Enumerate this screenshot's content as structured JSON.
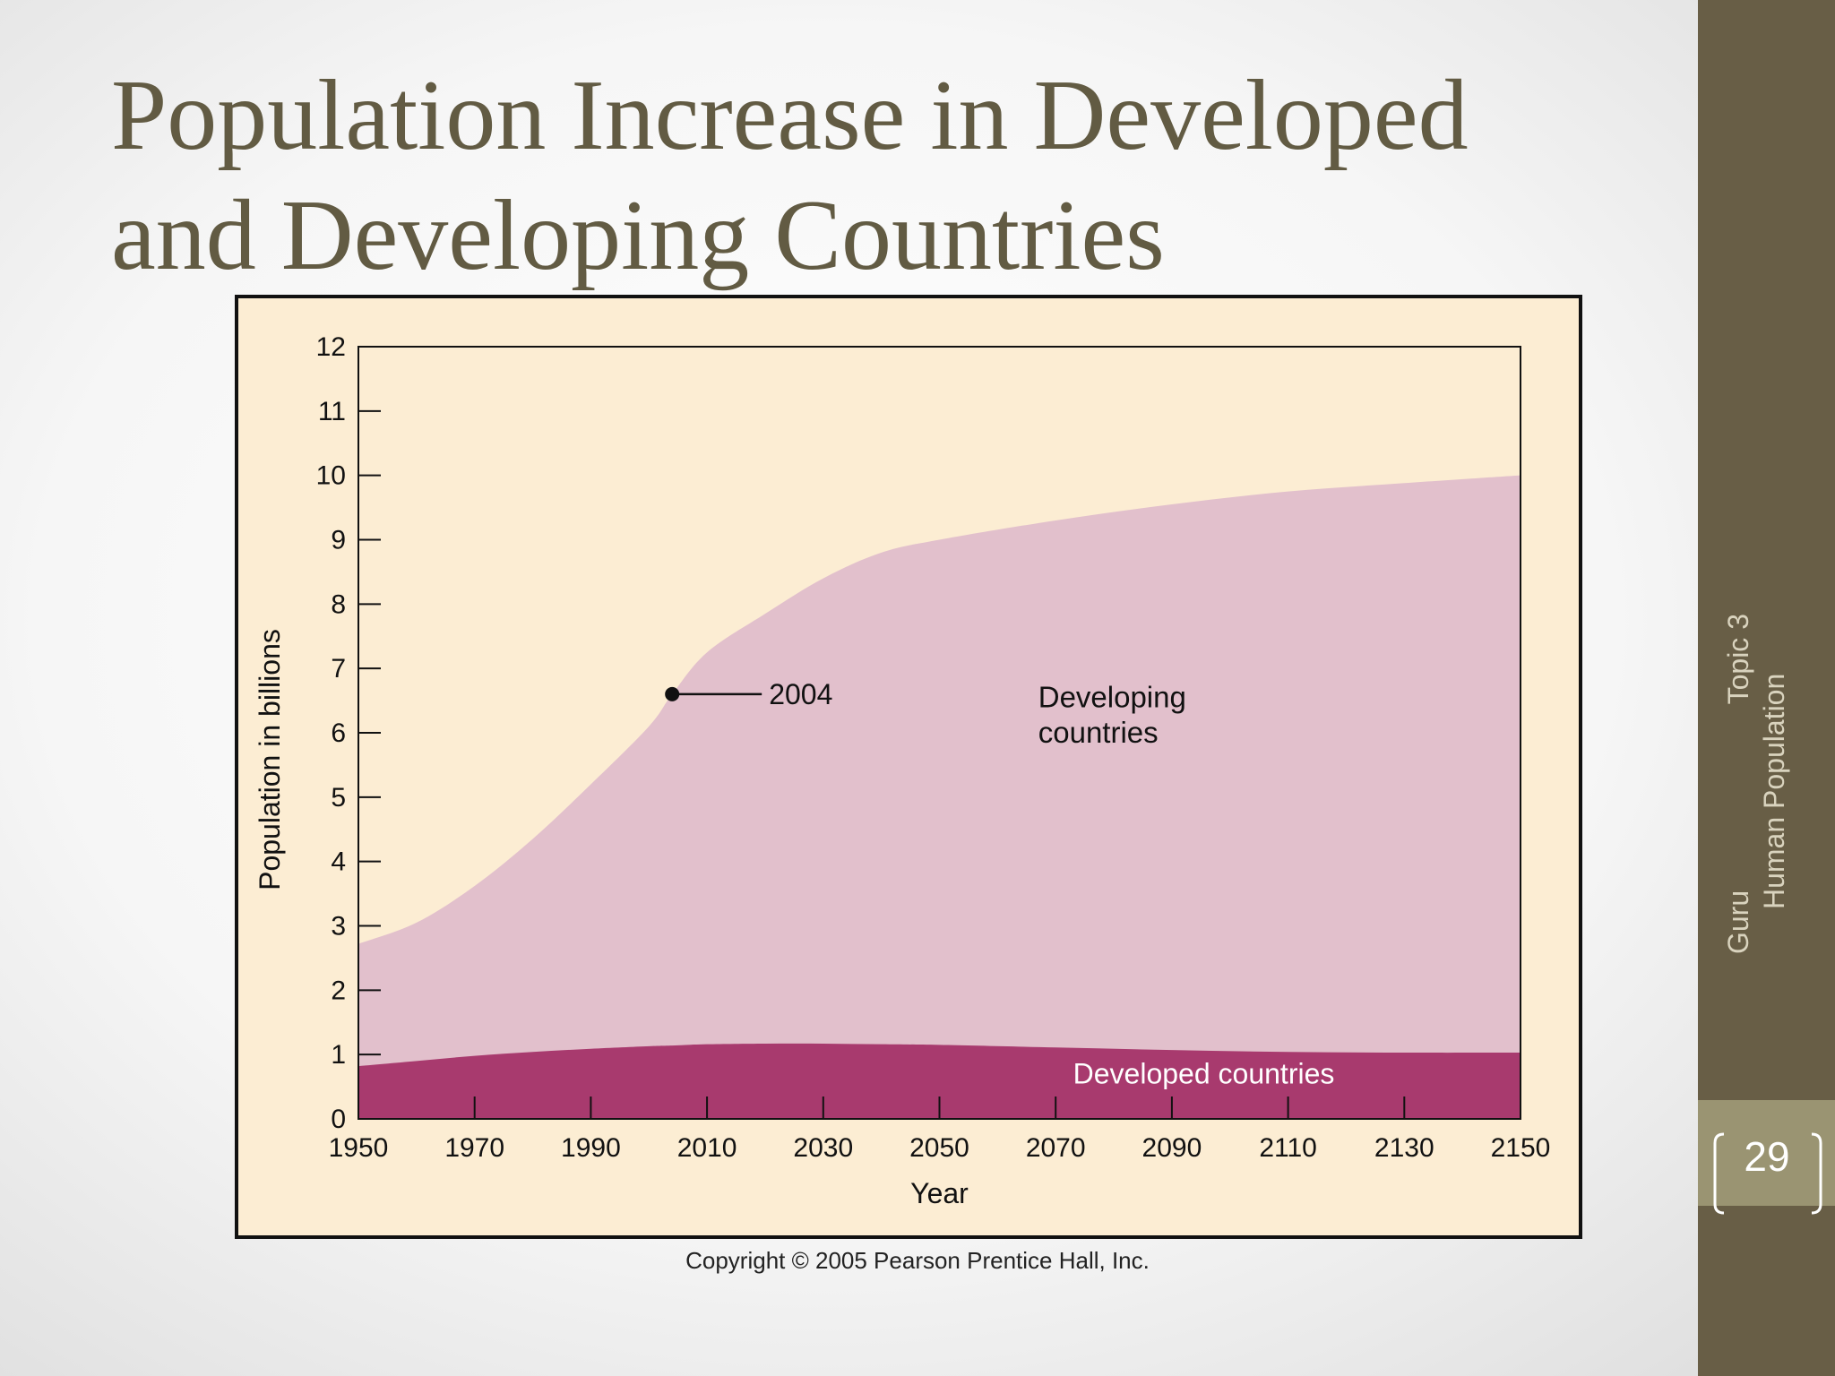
{
  "slide": {
    "title": "Population Increase in Developed and Developing Countries",
    "page_number": "29",
    "sidebar_line1_left": "Topic 3",
    "sidebar_line1_right": "Guru",
    "sidebar_line2": "Human Population",
    "copyright": "Copyright © 2005 Pearson Prentice Hall, Inc."
  },
  "colors": {
    "title": "#625b43",
    "sidebar": "#685e46",
    "sidebar_accent": "#9a9472",
    "chart_background": "#fcedd3",
    "developing_fill": "#e2c0cc",
    "developed_fill": "#a83a6e"
  },
  "chart_data": {
    "type": "area",
    "title": "",
    "xlabel": "Year",
    "ylabel": "Population in billions",
    "xlim": [
      1950,
      2150
    ],
    "ylim": [
      0,
      12
    ],
    "x_ticks": [
      1950,
      1970,
      1990,
      2010,
      2030,
      2050,
      2070,
      2090,
      2110,
      2130,
      2150
    ],
    "y_ticks": [
      0,
      1,
      2,
      3,
      4,
      5,
      6,
      7,
      8,
      9,
      10,
      11,
      12
    ],
    "grid": false,
    "stacked": true,
    "x": [
      1950,
      1960,
      1970,
      1980,
      1990,
      2000,
      2004,
      2010,
      2020,
      2030,
      2040,
      2050,
      2070,
      2090,
      2110,
      2130,
      2150
    ],
    "series": [
      {
        "name": "Developed countries",
        "values": [
          0.82,
          0.9,
          0.98,
          1.04,
          1.09,
          1.13,
          1.14,
          1.16,
          1.17,
          1.17,
          1.16,
          1.15,
          1.11,
          1.07,
          1.04,
          1.03,
          1.03
        ]
      },
      {
        "name": "Developing countries",
        "total": [
          2.72,
          3.05,
          3.62,
          4.35,
          5.2,
          6.1,
          6.6,
          7.25,
          7.85,
          8.4,
          8.8,
          9.0,
          9.3,
          9.55,
          9.75,
          9.88,
          10.0
        ]
      }
    ],
    "annotations": [
      {
        "text": "2004",
        "x": 2004,
        "y": 6.6
      }
    ]
  }
}
